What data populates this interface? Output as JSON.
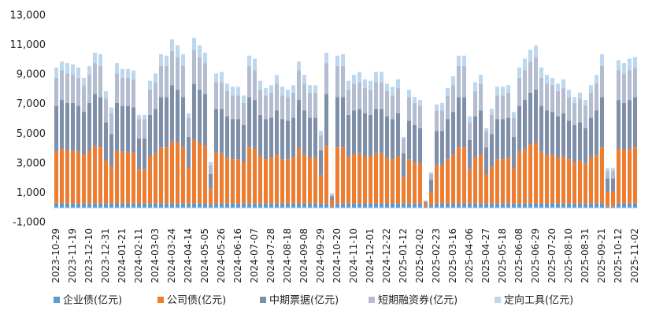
{
  "chart_data": {
    "type": "stacked_bar",
    "categories": [
      "2023-10-29",
      null,
      null,
      "2023-11-19",
      null,
      null,
      "2023-12-10",
      null,
      null,
      "2023-12-31",
      null,
      null,
      "2024-01-21",
      null,
      null,
      "2024-02-11",
      null,
      null,
      "2024-03-03",
      null,
      null,
      "2024-03-24",
      null,
      null,
      "2024-04-14",
      null,
      null,
      "2024-05-05",
      null,
      null,
      "2024-05-26",
      null,
      null,
      "2024-06-16",
      null,
      null,
      "2024-07-07",
      null,
      null,
      "2024-07-28",
      null,
      null,
      "2024-08-18",
      null,
      null,
      "2024-09-08",
      null,
      null,
      "2024-09-29",
      null,
      null,
      "2024-10-20",
      null,
      null,
      "2024-11-10",
      null,
      null,
      "2024-12-01",
      null,
      null,
      "2024-12-22",
      null,
      null,
      "2025-01-12",
      null,
      null,
      "2025-02-02",
      null,
      null,
      "2025-02-23",
      null,
      null,
      "2025-03-16",
      null,
      null,
      "2025-04-06",
      null,
      null,
      "2025-04-27",
      null,
      null,
      "2025-05-18",
      null,
      null,
      "2025-06-08",
      null,
      null,
      "2025-06-29",
      null,
      null,
      "2025-07-20",
      null,
      null,
      "2025-08-10",
      null,
      null,
      "2025-08-31",
      null,
      null,
      "2025-09-21",
      null,
      null,
      "2025-10-12",
      null,
      null,
      "2025-11-02"
    ],
    "series": [
      {
        "name": "企业债(亿元)",
        "color": "#5b9bd5",
        "values": [
          300,
          300,
          300,
          300,
          300,
          300,
          300,
          300,
          300,
          300,
          300,
          300,
          300,
          300,
          300,
          300,
          300,
          300,
          300,
          300,
          300,
          300,
          300,
          300,
          300,
          300,
          300,
          300,
          200,
          300,
          300,
          300,
          300,
          300,
          300,
          300,
          300,
          300,
          300,
          300,
          300,
          300,
          300,
          300,
          300,
          300,
          300,
          300,
          300,
          300,
          100,
          300,
          300,
          300,
          300,
          300,
          300,
          300,
          300,
          300,
          300,
          300,
          300,
          300,
          300,
          300,
          300,
          100,
          200,
          300,
          300,
          300,
          300,
          300,
          300,
          300,
          300,
          300,
          300,
          300,
          300,
          300,
          300,
          300,
          300,
          300,
          300,
          300,
          300,
          300,
          300,
          300,
          300,
          300,
          300,
          300,
          300,
          300,
          300,
          300,
          100,
          100,
          300,
          300,
          300,
          300
        ]
      },
      {
        "name": "公司债(亿元)",
        "color": "#ed7d31",
        "values": [
          3500,
          3700,
          3600,
          3600,
          3500,
          3300,
          3600,
          3900,
          3800,
          2900,
          2500,
          3600,
          3500,
          3500,
          3400,
          2300,
          2300,
          3200,
          3400,
          3800,
          3800,
          4200,
          4100,
          3800,
          2400,
          4300,
          4100,
          3900,
          1100,
          3400,
          3400,
          3100,
          3000,
          3000,
          2800,
          3800,
          3700,
          3200,
          3000,
          3100,
          3300,
          3000,
          3000,
          3100,
          3700,
          3300,
          3100,
          3100,
          1900,
          3900,
          400,
          3800,
          3800,
          3200,
          3300,
          3400,
          3200,
          3200,
          3400,
          3400,
          3100,
          3000,
          3200,
          1800,
          3000,
          2800,
          2700,
          200,
          900,
          2600,
          2600,
          3000,
          3300,
          3800,
          3800,
          2300,
          3100,
          3300,
          2000,
          2500,
          3000,
          3000,
          3100,
          2400,
          3500,
          3700,
          4000,
          4100,
          3500,
          3300,
          3300,
          3100,
          3200,
          3000,
          2800,
          2900,
          2700,
          3100,
          3300,
          3800,
          1000,
          1000,
          3700,
          3600,
          3700,
          3800
        ]
      },
      {
        "name": "中期票据(亿元)",
        "color": "#7f8fa9",
        "values": [
          3100,
          3300,
          3200,
          3200,
          3100,
          2900,
          3200,
          3500,
          3400,
          2600,
          2200,
          3200,
          3100,
          3100,
          3100,
          2100,
          2100,
          2800,
          3000,
          3400,
          3400,
          3800,
          3600,
          3400,
          2100,
          3800,
          3600,
          3500,
          1000,
          3000,
          3000,
          2800,
          2700,
          2700,
          2500,
          3400,
          3300,
          2800,
          2700,
          2700,
          3000,
          2700,
          2600,
          2700,
          3300,
          3000,
          2700,
          2700,
          1700,
          3500,
          300,
          3400,
          3400,
          2800,
          3000,
          3000,
          2900,
          2800,
          3000,
          3000,
          2800,
          2700,
          2900,
          1600,
          2600,
          2500,
          2400,
          100,
          800,
          2300,
          2300,
          2700,
          2900,
          3400,
          3400,
          2000,
          2800,
          3000,
          1800,
          2200,
          2700,
          2700,
          2700,
          2100,
          3100,
          3300,
          3500,
          3600,
          3100,
          3000,
          2900,
          2800,
          2900,
          2600,
          2500,
          2600,
          2400,
          2700,
          3000,
          3400,
          900,
          900,
          3300,
          3200,
          3300,
          3400
        ]
      },
      {
        "name": "短期融资券(亿元)",
        "color": "#b4bccf",
        "values": [
          1900,
          2000,
          2000,
          1900,
          1900,
          1800,
          1900,
          2100,
          2100,
          1600,
          1400,
          2000,
          1900,
          1900,
          1900,
          1300,
          1300,
          1700,
          1800,
          2100,
          2100,
          2300,
          2200,
          2100,
          1300,
          2300,
          2200,
          2100,
          600,
          1800,
          1800,
          1700,
          1600,
          1600,
          1500,
          2100,
          2000,
          1700,
          1600,
          1700,
          1800,
          1600,
          1600,
          1700,
          2000,
          1800,
          1700,
          1700,
          1000,
          2100,
          100,
          2100,
          2100,
          1700,
          1800,
          1800,
          1700,
          1700,
          1800,
          1800,
          1700,
          1600,
          1700,
          1000,
          1600,
          1500,
          1500,
          100,
          400,
          1400,
          1400,
          1600,
          1800,
          2100,
          2100,
          1200,
          1700,
          1800,
          1100,
          1300,
          1600,
          1600,
          1700,
          1300,
          1900,
          2000,
          2100,
          2200,
          1900,
          1800,
          1800,
          1700,
          1700,
          1600,
          1500,
          1600,
          1500,
          1700,
          1800,
          2100,
          500,
          500,
          2000,
          2000,
          2000,
          2000
        ]
      },
      {
        "name": "定向工具(亿元)",
        "color": "#bdd7ee",
        "values": [
          700,
          600,
          700,
          700,
          700,
          500,
          600,
          700,
          800,
          500,
          400,
          700,
          600,
          600,
          600,
          300,
          300,
          600,
          600,
          800,
          700,
          800,
          800,
          800,
          300,
          800,
          800,
          700,
          200,
          600,
          700,
          500,
          600,
          600,
          500,
          700,
          800,
          600,
          500,
          500,
          600,
          600,
          500,
          500,
          600,
          600,
          500,
          500,
          300,
          700,
          100,
          700,
          800,
          600,
          600,
          700,
          600,
          600,
          700,
          700,
          500,
          600,
          600,
          100,
          500,
          400,
          400,
          0,
          100,
          400,
          500,
          500,
          600,
          700,
          700,
          400,
          600,
          600,
          200,
          400,
          600,
          600,
          500,
          400,
          700,
          800,
          800,
          800,
          700,
          600,
          500,
          500,
          600,
          500,
          400,
          400,
          400,
          500,
          600,
          800,
          200,
          200,
          700,
          700,
          800,
          700
        ]
      }
    ],
    "ylim": [
      -1000,
      13000
    ],
    "yticks": [
      {
        "value": -1000,
        "label": "-1,000"
      },
      {
        "value": 1000,
        "label": "1,000"
      },
      {
        "value": 3000,
        "label": "3,000"
      },
      {
        "value": 5000,
        "label": "5,000"
      },
      {
        "value": 7000,
        "label": "7,000"
      },
      {
        "value": 9000,
        "label": "9,000"
      },
      {
        "value": 11000,
        "label": "11,000"
      },
      {
        "value": 13000,
        "label": "13,000"
      }
    ],
    "legend": "bottom"
  }
}
